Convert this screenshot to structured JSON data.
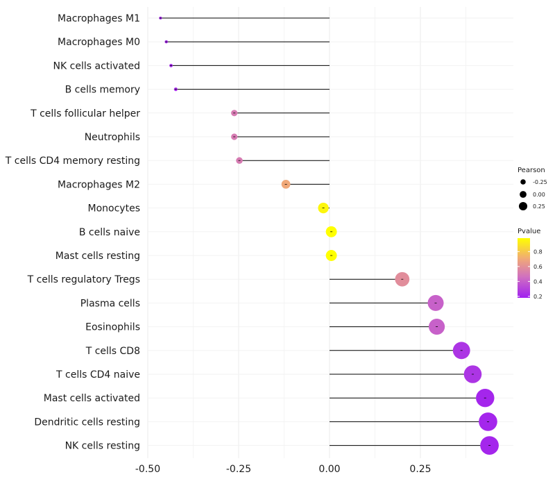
{
  "chart_data": {
    "type": "lollipop",
    "title": "",
    "xlabel": "",
    "ylabel": "",
    "xlim": [
      -0.5,
      0.45
    ],
    "x_ticks": [
      -0.5,
      -0.25,
      0.0,
      0.25
    ],
    "x_tick_labels": [
      "-0.50",
      "-0.25",
      "0.00",
      "0.25"
    ],
    "grid": true,
    "stem_color": "#000000",
    "color_low": "#a020f0",
    "color_high": "#ffff00",
    "categories": [
      "Macrophages M1",
      "Macrophages M0",
      "NK cells activated",
      "B cells memory",
      "T cells follicular helper",
      "Neutrophils",
      "T cells CD4 memory resting",
      "Macrophages M2",
      "Monocytes",
      "B cells naive",
      "Mast cells resting",
      "T cells regulatory  Tregs ",
      "Plasma cells",
      "Eosinophils",
      "T cells CD8",
      "T cells CD4 naive",
      "Mast cells activated",
      "Dendritic cells resting",
      "NK cells resting"
    ],
    "pearson": [
      -0.465,
      -0.449,
      -0.436,
      -0.423,
      -0.262,
      -0.262,
      -0.248,
      -0.12,
      -0.017,
      0.005,
      0.005,
      0.2,
      0.292,
      0.295,
      0.363,
      0.394,
      0.428,
      0.436,
      0.44
    ],
    "pvalue": [
      0.2,
      0.2,
      0.2,
      0.22,
      0.5,
      0.5,
      0.5,
      0.7,
      0.95,
      0.98,
      0.98,
      0.58,
      0.4,
      0.4,
      0.25,
      0.25,
      0.2,
      0.2,
      0.2
    ],
    "legend": {
      "position": "right",
      "size_title": "Pearson",
      "size_entries": [
        "-0.25",
        "0.00",
        "0.25"
      ],
      "size_values": [
        -0.25,
        0.0,
        0.25
      ],
      "color_title": "Pvalue",
      "color_ticks": [
        "0.8",
        "0.6",
        "0.4",
        "0.2"
      ],
      "color_tick_values": [
        0.8,
        0.6,
        0.4,
        0.2
      ],
      "color_range": [
        0.18,
        0.98
      ]
    }
  }
}
